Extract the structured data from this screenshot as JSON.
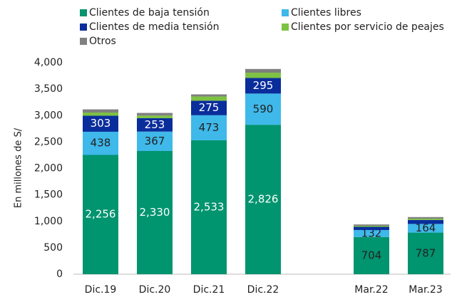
{
  "chart_data": {
    "type": "stacked_bar",
    "y_label": "En millones de S/",
    "categories": [
      "Dic.19",
      "Dic.20",
      "Dic.21",
      "Dic.22",
      null,
      "Mar.22",
      "Mar.23"
    ],
    "series": [
      {
        "name": "Clientes de baja tensión",
        "color": "#00946f",
        "values": [
          2256,
          2330,
          2533,
          2826,
          null,
          704,
          787
        ],
        "value_labels": [
          "2,256",
          "2,330",
          "2,533",
          "2,826",
          null,
          "704",
          "787"
        ]
      },
      {
        "name": "Clientes libres",
        "color": "#3fb8ea",
        "values": [
          438,
          367,
          473,
          590,
          null,
          132,
          164
        ],
        "value_labels": [
          "438",
          "367",
          "473",
          "590",
          null,
          "132",
          "164"
        ]
      },
      {
        "name": "Clientes de media tensión",
        "color": "#0a2d9c",
        "values": [
          303,
          253,
          275,
          295,
          null,
          60,
          75
        ],
        "value_labels": [
          "303",
          "253",
          "275",
          "295",
          null,
          null,
          null
        ]
      },
      {
        "name": "Clientes por servicio de peajes",
        "color": "#7dc242",
        "values": [
          60,
          50,
          80,
          100,
          null,
          20,
          25
        ]
      },
      {
        "name": "Otros",
        "color": "#808080",
        "values": [
          60,
          50,
          40,
          70,
          null,
          25,
          30
        ]
      }
    ],
    "ylim": [
      0,
      4000
    ],
    "yticks": [
      0,
      500,
      {
        "value": 1000,
        "label": "1,000"
      },
      {
        "value": 1500,
        "label": "1,500"
      },
      {
        "value": 2000,
        "label": "2,000"
      },
      {
        "value": 2500,
        "label": "2,500"
      },
      {
        "value": 3000,
        "label": "3,000"
      },
      {
        "value": 3500,
        "label": "3,500"
      },
      {
        "value": 4000,
        "label": "4,000"
      }
    ],
    "grid": false
  }
}
